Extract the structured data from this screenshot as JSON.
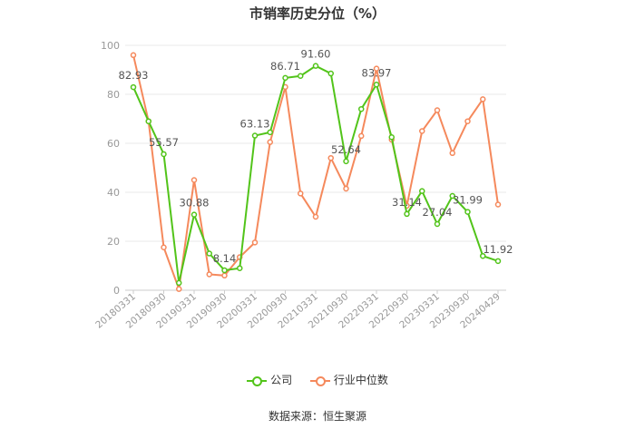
{
  "title": "市销率历史分位（%）",
  "source": "数据来源：恒生聚源",
  "colors": {
    "company": "#52c41a",
    "industry": "#f5895c",
    "axis": "#999999",
    "grid": "#e8e8e8",
    "label": "#555555"
  },
  "legend": {
    "company_label": "公司",
    "industry_label": "行业中位数"
  },
  "chart_data": {
    "type": "line",
    "title": "市销率历史分位（%）",
    "ylim": [
      0,
      100
    ],
    "yticks": [
      0,
      20,
      40,
      60,
      80,
      100
    ],
    "grid": true,
    "legend_position": "bottom",
    "x_tick_labels": [
      "20180331",
      "20180930",
      "20190331",
      "20190930",
      "20200331",
      "20200930",
      "20210331",
      "20210930",
      "20220331",
      "20220930",
      "20230331",
      "20230930",
      "20240429"
    ],
    "x": [
      "20180331",
      "20180630",
      "20180930",
      "20181231",
      "20190331",
      "20190630",
      "20190930",
      "20191231",
      "20200331",
      "20200630",
      "20200930",
      "20201231",
      "20210331",
      "20210630",
      "20210930",
      "20211231",
      "20220331",
      "20220630",
      "20220930",
      "20221231",
      "20230331",
      "20230630",
      "20230930",
      "20231231",
      "20240429"
    ],
    "series": [
      {
        "name": "公司",
        "values": [
          82.93,
          69,
          55.57,
          3,
          30.88,
          15,
          8.14,
          9,
          63.13,
          64.5,
          86.71,
          87.5,
          91.6,
          88.5,
          52.64,
          74,
          83.97,
          62.5,
          31.14,
          40.5,
          27.04,
          38.5,
          31.99,
          14,
          11.92
        ]
      },
      {
        "name": "行业中位数",
        "values": [
          96,
          69,
          17.5,
          0.5,
          45,
          6.5,
          6,
          13.5,
          19.5,
          60.5,
          83,
          39.5,
          30,
          54,
          41.5,
          63,
          90.5,
          61.5,
          34.5,
          65,
          73.5,
          56,
          69,
          78,
          35
        ]
      }
    ],
    "point_labels": [
      {
        "index": 0,
        "text": "82.93"
      },
      {
        "index": 2,
        "text": "55.57"
      },
      {
        "index": 4,
        "text": "30.88"
      },
      {
        "index": 6,
        "text": "8.14"
      },
      {
        "index": 8,
        "text": "63.13"
      },
      {
        "index": 10,
        "text": "86.71"
      },
      {
        "index": 12,
        "text": "91.60"
      },
      {
        "index": 14,
        "text": "52.64"
      },
      {
        "index": 16,
        "text": "83.97"
      },
      {
        "index": 18,
        "text": "31.14"
      },
      {
        "index": 20,
        "text": "27.04"
      },
      {
        "index": 22,
        "text": "31.99"
      },
      {
        "index": 24,
        "text": "11.92"
      }
    ]
  }
}
